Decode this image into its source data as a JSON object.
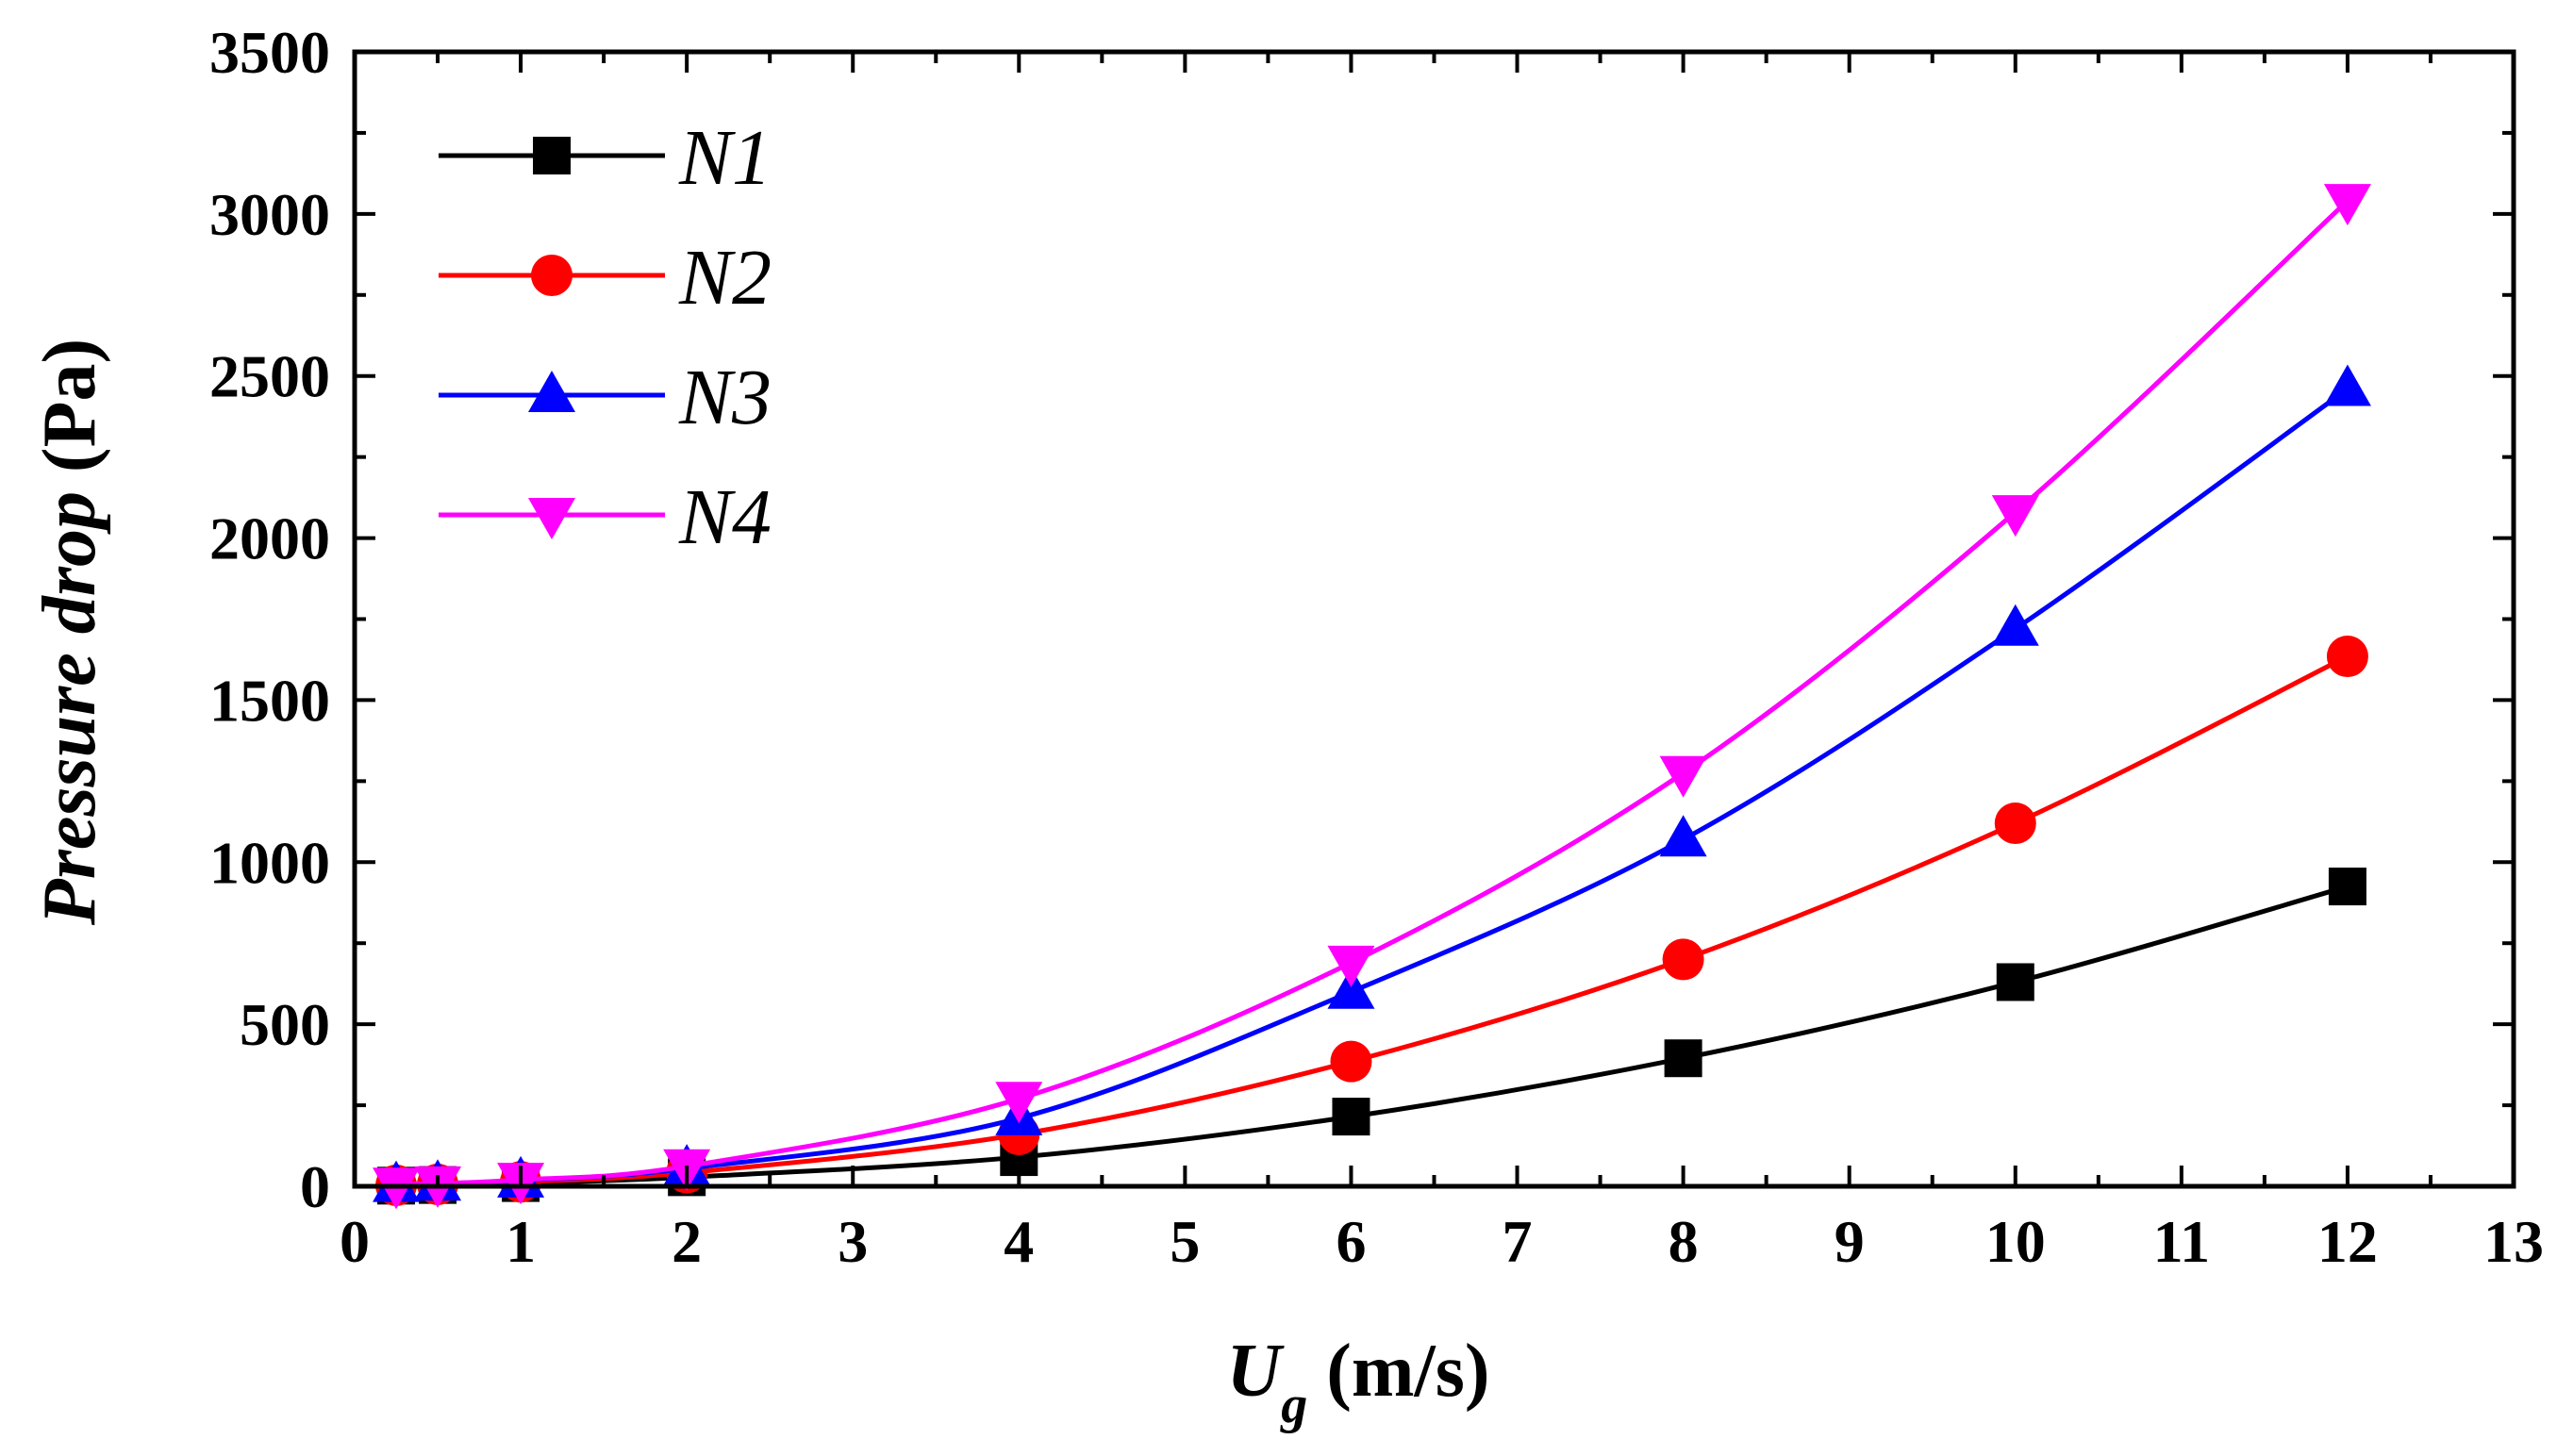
{
  "chart_data": {
    "type": "line",
    "title": "",
    "xlabel": {
      "italic": "U",
      "subscript": "g",
      "unit": " (m/s)"
    },
    "ylabel": {
      "italic": "Pressure drop",
      "unit": " (Pa)"
    },
    "xlim": [
      0,
      13
    ],
    "ylim": [
      0,
      3500
    ],
    "xticks": [
      "0",
      "1",
      "2",
      "3",
      "4",
      "5",
      "6",
      "7",
      "8",
      "9",
      "10",
      "11",
      "12",
      "13"
    ],
    "yticks": [
      "0",
      "500",
      "1000",
      "1500",
      "2000",
      "2500",
      "3000",
      "3500"
    ],
    "grid": false,
    "legend_position": "top-left",
    "x": [
      0.25,
      0.5,
      1,
      2,
      4,
      6,
      8,
      10,
      12
    ],
    "series": [
      {
        "name": "N1",
        "color": "#000000",
        "marker": "square",
        "values": [
          2,
          4,
          10,
          28,
          90,
          215,
          395,
          630,
          925
        ]
      },
      {
        "name": "N2",
        "color": "#ff0000",
        "marker": "circle",
        "values": [
          3,
          6,
          14,
          42,
          160,
          385,
          700,
          1120,
          1635
        ]
      },
      {
        "name": "N3",
        "color": "#0000ff",
        "marker": "triangle-up",
        "values": [
          4,
          8,
          18,
          55,
          210,
          600,
          1070,
          1720,
          2460
        ]
      },
      {
        "name": "N4",
        "color": "#ff00ff",
        "marker": "triangle-down",
        "values": [
          5,
          9,
          20,
          62,
          270,
          690,
          1275,
          2080,
          3040
        ]
      }
    ]
  }
}
